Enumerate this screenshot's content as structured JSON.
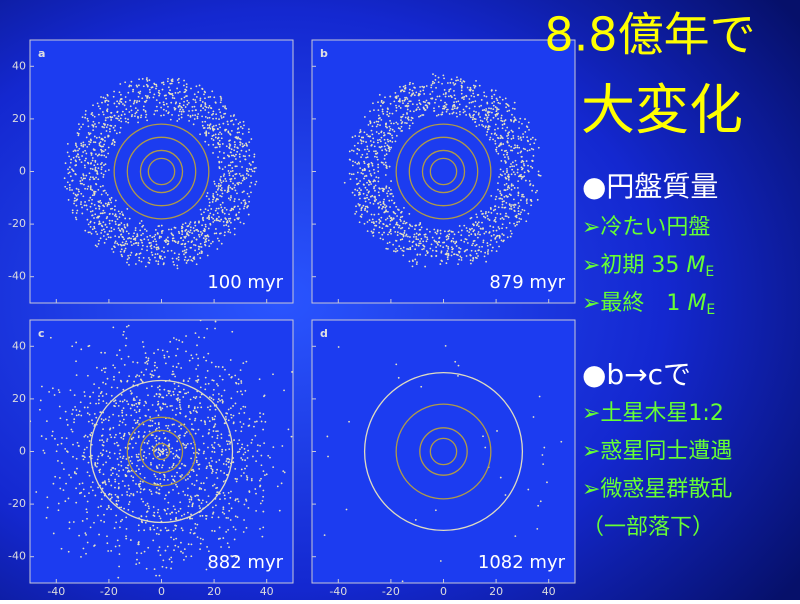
{
  "title": [
    "8.8億年で",
    "大変化"
  ],
  "axes": {
    "xlim": [
      -50,
      50
    ],
    "ylim": [
      -50,
      50
    ],
    "xticks": [
      -40,
      -20,
      0,
      20,
      40
    ],
    "yticks": [
      40,
      20,
      0,
      -20,
      -40
    ]
  },
  "panels": [
    {
      "label": "a",
      "time": "100 myr",
      "orbits": [
        5,
        8,
        13,
        18
      ]
    },
    {
      "label": "b",
      "time": "879 myr",
      "orbits": [
        5,
        8,
        13,
        18
      ]
    },
    {
      "label": "c",
      "time": "882 myr",
      "orbits": [
        3,
        8,
        13,
        27
      ]
    },
    {
      "label": "d",
      "time": "1082 myr",
      "orbits": [
        5,
        9,
        18,
        30
      ]
    }
  ],
  "notes": [
    {
      "kind": "head",
      "text": "●円盤質量"
    },
    {
      "kind": "item",
      "text": "➢冷たい円盤"
    },
    {
      "kind": "item",
      "text": "➢初期 35 ",
      "var": "M",
      "sub": "E"
    },
    {
      "kind": "item",
      "text": "➢最終　1 ",
      "var": "M",
      "sub": "E"
    },
    {
      "kind": "head",
      "text": "●b→cで"
    },
    {
      "kind": "item",
      "text": "➢土星木星1:2"
    },
    {
      "kind": "item",
      "text": "➢惑星同士遭遇"
    },
    {
      "kind": "item",
      "text": "➢微惑星群散乱"
    },
    {
      "kind": "item",
      "text": "（一部落下）"
    }
  ]
}
